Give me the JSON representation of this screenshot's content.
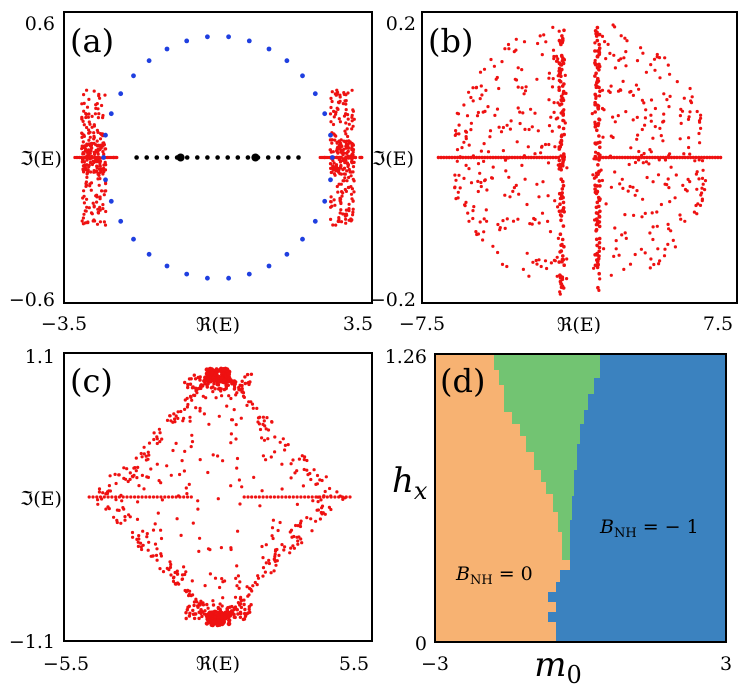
{
  "chart_data": [
    {
      "panel": "(a)",
      "type": "scatter",
      "xlabel": "ℜ(E)",
      "ylabel": "ℑ(E)",
      "xlim": [
        -3.5,
        3.5
      ],
      "ylim": [
        -0.6,
        0.6
      ],
      "xtick_labels": [
        "−3.5",
        "3.5"
      ],
      "ytick_labels": [
        "0.6",
        "−0.6"
      ],
      "series": [
        {
          "name": "red",
          "color": "#ee1111",
          "description": "two dense clusters near Re=±2.8"
        },
        {
          "name": "blue",
          "color": "#1f3fe0",
          "description": "ring, radius ≈2.6 (Re) × 0.5 (Im)"
        },
        {
          "name": "black",
          "color": "#000000",
          "description": "points on real axis between clusters"
        }
      ]
    },
    {
      "panel": "(b)",
      "type": "scatter",
      "xlabel": "ℜ(E)",
      "ylabel": "ℑ(E)",
      "xlim": [
        -7.5,
        7.5
      ],
      "ylim": [
        -0.2,
        0.2
      ],
      "xtick_labels": [
        "−7.5",
        "7.5"
      ],
      "ytick_labels": [
        "0.2",
        "−0.2"
      ],
      "series": [
        {
          "name": "red",
          "color": "#ee1111",
          "description": "two lobes with vertical bands near Re=±0.9"
        }
      ]
    },
    {
      "panel": "(c)",
      "type": "scatter",
      "xlabel": "ℜ(E)",
      "ylabel": "ℑ(E)",
      "xlim": [
        -5.5,
        5.5
      ],
      "ylim": [
        -1.1,
        1.1
      ],
      "xtick_labels": [
        "−5.5",
        "5.5"
      ],
      "ytick_labels": [
        "1.1",
        "−1.1"
      ],
      "series": [
        {
          "name": "red",
          "color": "#ee1111",
          "description": "diamond shaped spectrum with dense caps at Im=±0.95"
        }
      ]
    },
    {
      "panel": "(d)",
      "type": "heatmap",
      "xlabel": "m",
      "xlabel_sub": "0",
      "ylabel": "h",
      "ylabel_sub": "x",
      "xlim": [
        -3,
        3
      ],
      "ylim": [
        0,
        1.26
      ],
      "xtick_labels": [
        "−3",
        "3"
      ],
      "ytick_labels": [
        "1.26",
        "0"
      ],
      "regions": [
        {
          "name": "orange",
          "color": "#f7b272",
          "label_pre": "B",
          "label_sub": "NH",
          "label_post": " = 0"
        },
        {
          "name": "green",
          "color": "#72c472",
          "label_pre": "",
          "label_sub": "",
          "label_post": ""
        },
        {
          "name": "blue",
          "color": "#3b82bf",
          "label_pre": "B",
          "label_sub": "NH",
          "label_post": " = − 1"
        }
      ]
    }
  ]
}
